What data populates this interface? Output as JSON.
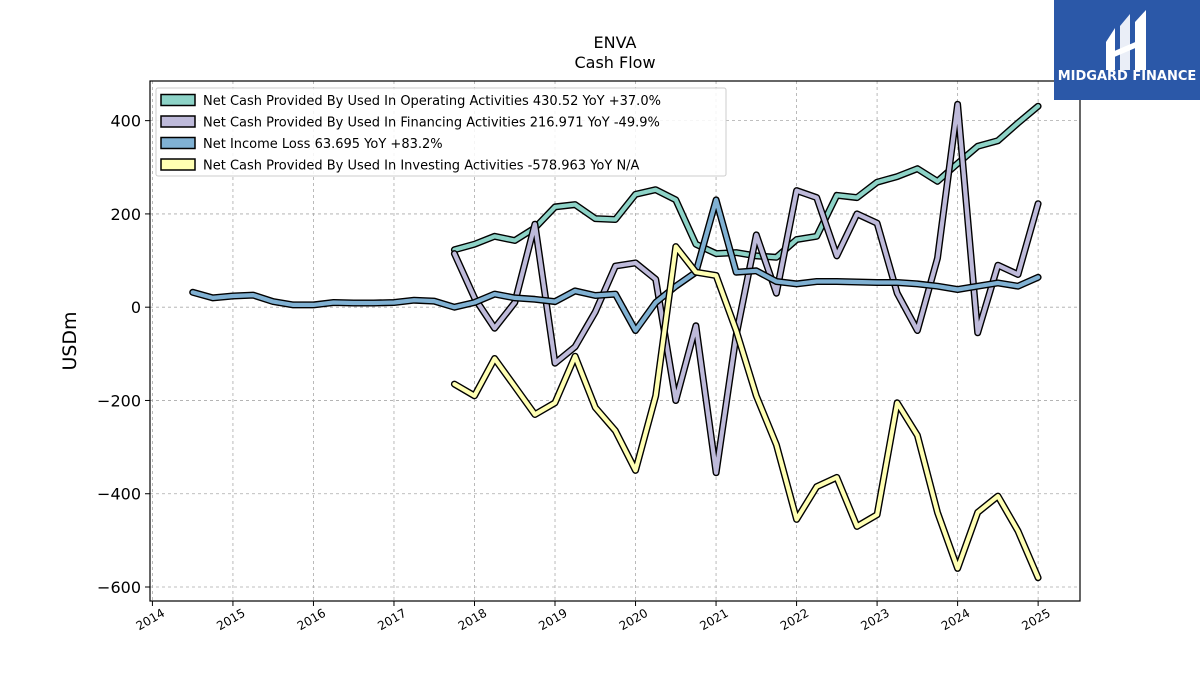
{
  "header": {
    "ticker": "ENVA",
    "subtitle": "Cash Flow"
  },
  "logo": {
    "text": "MIDGARD FINANCE",
    "background": "#2b58a8"
  },
  "chart_data": {
    "type": "line",
    "title": "ENVA",
    "subtitle": "Cash Flow",
    "ylabel": "USDm",
    "xlabel": "",
    "ylim": [
      -630,
      485
    ],
    "xlim": [
      2013.97,
      2025.52
    ],
    "yticks": [
      400,
      200,
      0,
      -200,
      -400,
      -600
    ],
    "ytick_labels": [
      "400",
      "200",
      "0",
      "−200",
      "−400",
      "−600"
    ],
    "xticks": [
      2014,
      2015,
      2016,
      2017,
      2018,
      2019,
      2020,
      2021,
      2022,
      2023,
      2024,
      2025
    ],
    "grid": true,
    "legend_position": "top-left",
    "series": [
      {
        "name": "Net Cash Provided By Used In Operating Activities",
        "legend_label": "Net Cash Provided By Used In Operating Activities  430.52 YoY +37.0%",
        "color": "#8dd3c7",
        "x": [
          2017.75,
          2018.0,
          2018.25,
          2018.5,
          2018.75,
          2019.0,
          2019.25,
          2019.5,
          2019.75,
          2020.0,
          2020.25,
          2020.5,
          2020.75,
          2021.0,
          2021.25,
          2021.5,
          2021.75,
          2022.0,
          2022.25,
          2022.5,
          2022.75,
          2023.0,
          2023.25,
          2023.5,
          2023.75,
          2024.0,
          2024.25,
          2024.5,
          2024.75,
          2025.0
        ],
        "y": [
          123,
          135,
          152,
          143,
          170,
          215,
          220,
          190,
          188,
          242,
          252,
          230,
          135,
          115,
          117,
          110,
          107,
          145,
          152,
          240,
          235,
          268,
          280,
          297,
          270,
          308,
          345,
          357,
          395,
          431
        ]
      },
      {
        "name": "Net Cash Provided By Used In Financing Activities",
        "legend_label": "Net Cash Provided By Used In Financing Activities  216.971 YoY -49.9%",
        "color": "#bebada",
        "x": [
          2017.75,
          2018.0,
          2018.25,
          2018.5,
          2018.75,
          2019.0,
          2019.25,
          2019.5,
          2019.75,
          2020.0,
          2020.25,
          2020.5,
          2020.75,
          2021.0,
          2021.25,
          2021.5,
          2021.75,
          2022.0,
          2022.25,
          2022.5,
          2022.75,
          2023.0,
          2023.25,
          2023.5,
          2023.75,
          2024.0,
          2024.25,
          2024.5,
          2024.75,
          2025.0
        ],
        "y": [
          115,
          20,
          -45,
          10,
          178,
          -120,
          -85,
          -10,
          88,
          95,
          60,
          -200,
          -40,
          -355,
          -60,
          155,
          30,
          250,
          235,
          110,
          200,
          180,
          30,
          -50,
          105,
          435,
          -55,
          90,
          70,
          222
        ]
      },
      {
        "name": "Net Income Loss",
        "legend_label": "Net Income Loss  63.695 YoY +83.2%",
        "color": "#80b1d3",
        "x": [
          2014.5,
          2014.75,
          2015.0,
          2015.25,
          2015.5,
          2015.75,
          2016.0,
          2016.25,
          2016.5,
          2016.75,
          2017.0,
          2017.25,
          2017.5,
          2017.75,
          2018.0,
          2018.25,
          2018.5,
          2018.75,
          2019.0,
          2019.25,
          2019.5,
          2019.75,
          2020.0,
          2020.25,
          2020.5,
          2020.75,
          2021.0,
          2021.25,
          2021.5,
          2021.75,
          2022.0,
          2022.25,
          2022.5,
          2022.75,
          2023.0,
          2023.25,
          2023.5,
          2023.75,
          2024.0,
          2024.25,
          2024.5,
          2024.75,
          2025.0
        ],
        "y": [
          32,
          20,
          24,
          26,
          12,
          5,
          5,
          10,
          9,
          9,
          10,
          15,
          13,
          0,
          10,
          28,
          20,
          17,
          12,
          35,
          25,
          28,
          -50,
          10,
          45,
          75,
          230,
          75,
          78,
          55,
          50,
          55,
          55,
          54,
          53,
          53,
          50,
          45,
          38,
          45,
          52,
          45,
          64
        ]
      },
      {
        "name": "Net Cash Provided By Used In Investing Activities",
        "legend_label": "Net Cash Provided By Used In Investing Activities  -578.963 YoY N/A",
        "color": "#ffffb3",
        "x": [
          2017.75,
          2018.0,
          2018.25,
          2018.5,
          2018.75,
          2019.0,
          2019.25,
          2019.5,
          2019.75,
          2020.0,
          2020.25,
          2020.5,
          2020.75,
          2021.0,
          2021.25,
          2021.5,
          2021.75,
          2022.0,
          2022.25,
          2022.5,
          2022.75,
          2023.0,
          2023.25,
          2023.5,
          2023.75,
          2024.0,
          2024.25,
          2024.5,
          2024.75,
          2025.0
        ],
        "y": [
          -165,
          -190,
          -110,
          -170,
          -230,
          -205,
          -105,
          -215,
          -265,
          -350,
          -190,
          130,
          75,
          68,
          -50,
          -190,
          -295,
          -455,
          -385,
          -365,
          -470,
          -445,
          -205,
          -275,
          -440,
          -560,
          -440,
          -405,
          -480,
          -580
        ]
      }
    ]
  }
}
